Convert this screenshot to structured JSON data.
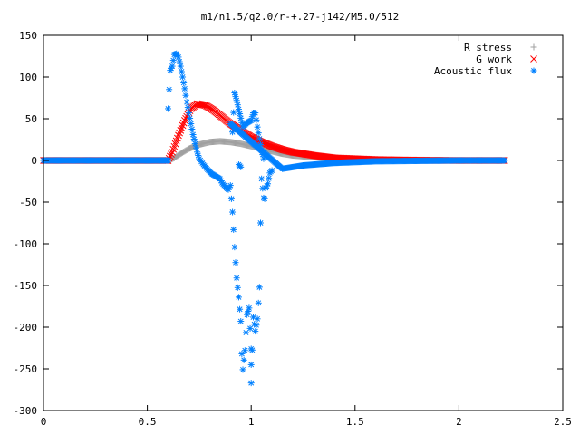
{
  "chart_data": {
    "type": "scatter",
    "title": "m1/n1.5/q2.0/r-+.27-j142/M5.0/512",
    "xlabel": "",
    "ylabel": "",
    "xlim": [
      0,
      2.5
    ],
    "ylim": [
      -300,
      150
    ],
    "xticks": [
      0,
      0.5,
      1,
      1.5,
      2,
      2.5
    ],
    "xtick_labels": [
      "0",
      "0.5",
      "1",
      "1.5",
      "2",
      "2.5"
    ],
    "yticks": [
      -300,
      -250,
      -200,
      -150,
      -100,
      -50,
      0,
      50,
      100,
      150
    ],
    "ytick_labels": [
      "-300",
      "-250",
      "-200",
      "-150",
      "-100",
      "-50",
      "0",
      "50",
      "100",
      "150"
    ],
    "grid": false,
    "legend_position": "top-right",
    "series": [
      {
        "name": "R stress",
        "marker": "plus",
        "color": "#a0a0a0",
        "points": [
          [
            0.6,
            0
          ],
          [
            0.63,
            3
          ],
          [
            0.66,
            8
          ],
          [
            0.7,
            14
          ],
          [
            0.75,
            19
          ],
          [
            0.8,
            22
          ],
          [
            0.85,
            23
          ],
          [
            0.9,
            22
          ],
          [
            0.95,
            20
          ],
          [
            1.0,
            17
          ],
          [
            1.05,
            14
          ],
          [
            1.1,
            11
          ],
          [
            1.15,
            8
          ],
          [
            1.2,
            6
          ],
          [
            1.3,
            4
          ],
          [
            1.4,
            2
          ],
          [
            1.5,
            1
          ],
          [
            1.6,
            0.5
          ],
          [
            1.8,
            0.2
          ],
          [
            2.0,
            0
          ],
          [
            2.22,
            0
          ]
        ]
      },
      {
        "name": "G work",
        "marker": "cross",
        "color": "#ff0000",
        "points": [
          [
            0.6,
            0
          ],
          [
            0.62,
            10
          ],
          [
            0.65,
            30
          ],
          [
            0.68,
            48
          ],
          [
            0.71,
            62
          ],
          [
            0.74,
            68
          ],
          [
            0.78,
            66
          ],
          [
            0.82,
            60
          ],
          [
            0.86,
            52
          ],
          [
            0.9,
            44
          ],
          [
            0.95,
            36
          ],
          [
            1.0,
            28
          ],
          [
            1.05,
            22
          ],
          [
            1.1,
            17
          ],
          [
            1.15,
            13
          ],
          [
            1.2,
            10
          ],
          [
            1.3,
            6
          ],
          [
            1.4,
            3
          ],
          [
            1.5,
            2
          ],
          [
            1.6,
            1
          ],
          [
            1.8,
            0.3
          ],
          [
            2.0,
            0
          ],
          [
            2.22,
            0
          ]
        ]
      },
      {
        "name": "Acoustic flux",
        "marker": "star",
        "color": "#0080ff",
        "points": [
          [
            0.6,
            0
          ],
          [
            0.6,
            62
          ],
          [
            0.61,
            108
          ],
          [
            0.62,
            113
          ],
          [
            0.625,
            120
          ],
          [
            0.63,
            127
          ],
          [
            0.64,
            128
          ],
          [
            0.65,
            124
          ],
          [
            0.66,
            113
          ],
          [
            0.67,
            100
          ],
          [
            0.68,
            86
          ],
          [
            0.69,
            70
          ],
          [
            0.7,
            57
          ],
          [
            0.71,
            44
          ],
          [
            0.72,
            31
          ],
          [
            0.73,
            20
          ],
          [
            0.74,
            10
          ],
          [
            0.75,
            2
          ],
          [
            0.77,
            -5
          ],
          [
            0.79,
            -11
          ],
          [
            0.81,
            -16
          ],
          [
            0.83,
            -19
          ],
          [
            0.85,
            -22
          ],
          [
            0.86,
            -27
          ],
          [
            0.87,
            -30
          ],
          [
            0.88,
            -33
          ],
          [
            0.89,
            -35
          ],
          [
            0.9,
            -30
          ],
          [
            0.91,
            -62
          ],
          [
            0.92,
            -104
          ],
          [
            0.93,
            -141
          ],
          [
            0.94,
            -164
          ],
          [
            0.95,
            -193
          ],
          [
            0.955,
            -232
          ],
          [
            0.96,
            -251
          ],
          [
            0.97,
            -228
          ],
          [
            0.98,
            -185
          ],
          [
            0.99,
            -177
          ],
          [
            1.0,
            -226
          ],
          [
            1.0,
            -245
          ],
          [
            1.0,
            -267
          ],
          [
            1.01,
            -188
          ],
          [
            1.02,
            -205
          ],
          [
            1.03,
            -190
          ],
          [
            1.04,
            -152
          ],
          [
            1.045,
            -75
          ],
          [
            1.05,
            -22
          ],
          [
            1.06,
            -45
          ],
          [
            1.065,
            -46
          ],
          [
            1.07,
            -33
          ],
          [
            1.08,
            -28
          ],
          [
            1.09,
            -15
          ],
          [
            1.1,
            -12
          ],
          [
            0.91,
            34
          ],
          [
            0.92,
            81
          ],
          [
            0.93,
            72
          ],
          [
            0.96,
            40
          ],
          [
            0.98,
            45
          ],
          [
            1.0,
            48
          ],
          [
            1.01,
            57
          ],
          [
            1.02,
            57
          ],
          [
            1.03,
            40
          ],
          [
            1.04,
            26
          ],
          [
            1.05,
            12
          ],
          [
            1.06,
            2
          ],
          [
            0.94,
            -5
          ],
          [
            0.95,
            -8
          ],
          [
            0.9,
            44
          ],
          [
            1.15,
            -10
          ],
          [
            1.2,
            -8
          ],
          [
            1.25,
            -6
          ],
          [
            1.3,
            -5
          ],
          [
            1.35,
            -4
          ],
          [
            1.4,
            -3
          ],
          [
            1.5,
            -2
          ],
          [
            1.6,
            -1
          ],
          [
            1.8,
            -0.5
          ],
          [
            2.0,
            0
          ],
          [
            2.22,
            0
          ]
        ]
      }
    ]
  }
}
